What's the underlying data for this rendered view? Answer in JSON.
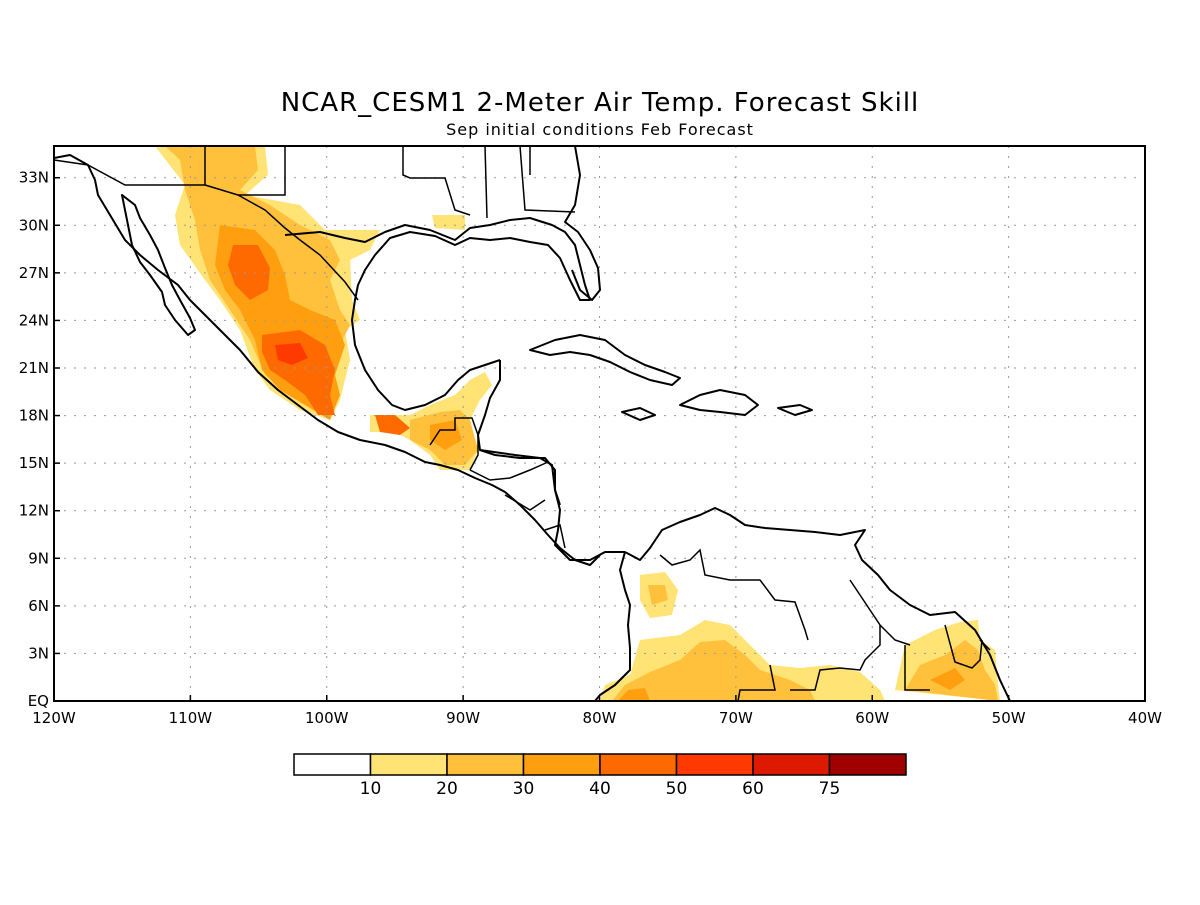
{
  "title": "NCAR_CESM1 2-Meter Air Temp. Forecast Skill",
  "subtitle": "Sep initial conditions  Feb Forecast",
  "map": {
    "lon_range": [
      -120,
      -40
    ],
    "lat_range": [
      0,
      35
    ],
    "lon_ticks": [
      "120W",
      "110W",
      "100W",
      "90W",
      "80W",
      "70W",
      "60W",
      "50W",
      "40W"
    ],
    "lat_ticks": [
      "EQ",
      "3N",
      "6N",
      "9N",
      "12N",
      "15N",
      "18N",
      "21N",
      "24N",
      "27N",
      "30N",
      "33N"
    ],
    "grid": "dotted"
  },
  "colorbar": {
    "labels": [
      "10",
      "20",
      "30",
      "40",
      "50",
      "60",
      "75"
    ],
    "colors": [
      "#ffffff",
      "#ffe375",
      "#ffc03c",
      "#ff9f0f",
      "#ff6a00",
      "#ff3a00",
      "#dd1a00",
      "#a00000"
    ]
  }
}
